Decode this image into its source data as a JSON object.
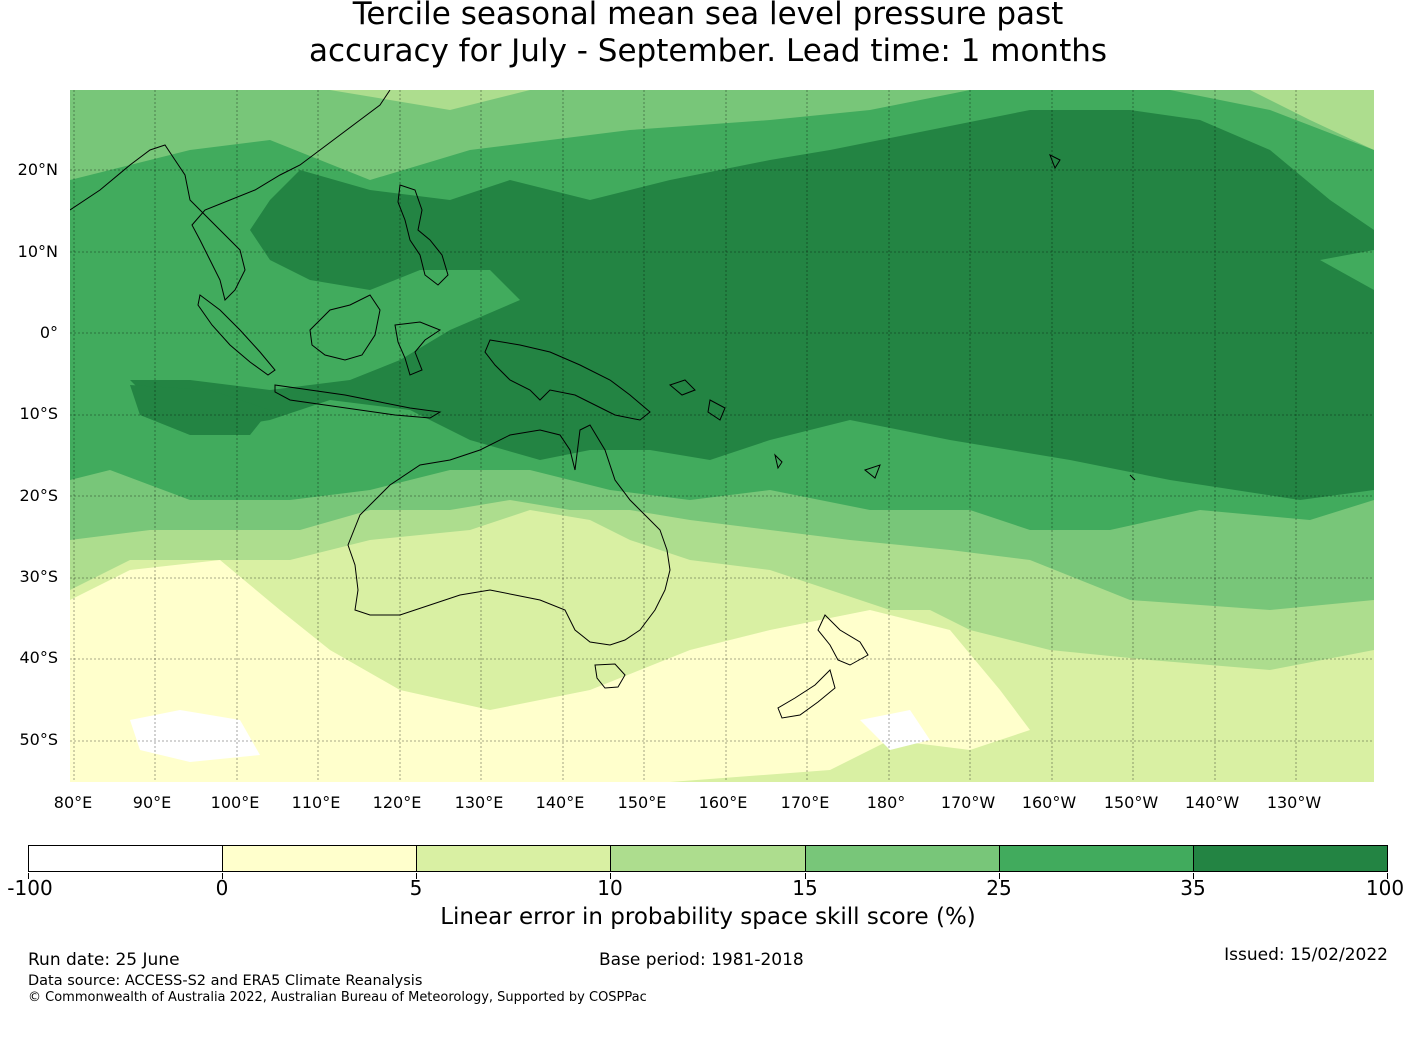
{
  "title": {
    "line1": "Tercile seasonal mean sea level pressure past",
    "line2": "accuracy for July - September. Lead time: 1 months"
  },
  "map": {
    "lat_labels": [
      "20°N",
      "10°N",
      "0°",
      "10°S",
      "20°S",
      "30°S",
      "40°S",
      "50°S"
    ],
    "lon_labels": [
      "80°E",
      "90°E",
      "100°E",
      "110°E",
      "120°E",
      "130°E",
      "140°E",
      "150°E",
      "160°E",
      "170°E",
      "180°",
      "170°W",
      "160°W",
      "150°W",
      "140°W",
      "130°W"
    ]
  },
  "colorbar": {
    "colors": [
      "#ffffff",
      "#ffffcc",
      "#d9f0a3",
      "#addd8e",
      "#78c679",
      "#41ab5d",
      "#238443"
    ],
    "ticks": [
      "-100",
      "0",
      "5",
      "10",
      "15",
      "25",
      "35",
      "100"
    ],
    "title": "Linear error in probability space skill score (%)"
  },
  "footer": {
    "run_date": "Run date: 25 June",
    "base_period": "Base period: 1981-2018",
    "issued": "Issued: 15/02/2022",
    "data_source": "Data source: ACCESS-S2 and ERA5 Climate Reanalysis",
    "copyright": "© Commonwealth of Australia 2022, Australian Bureau of Meteorology, Supported by COSPPac"
  }
}
